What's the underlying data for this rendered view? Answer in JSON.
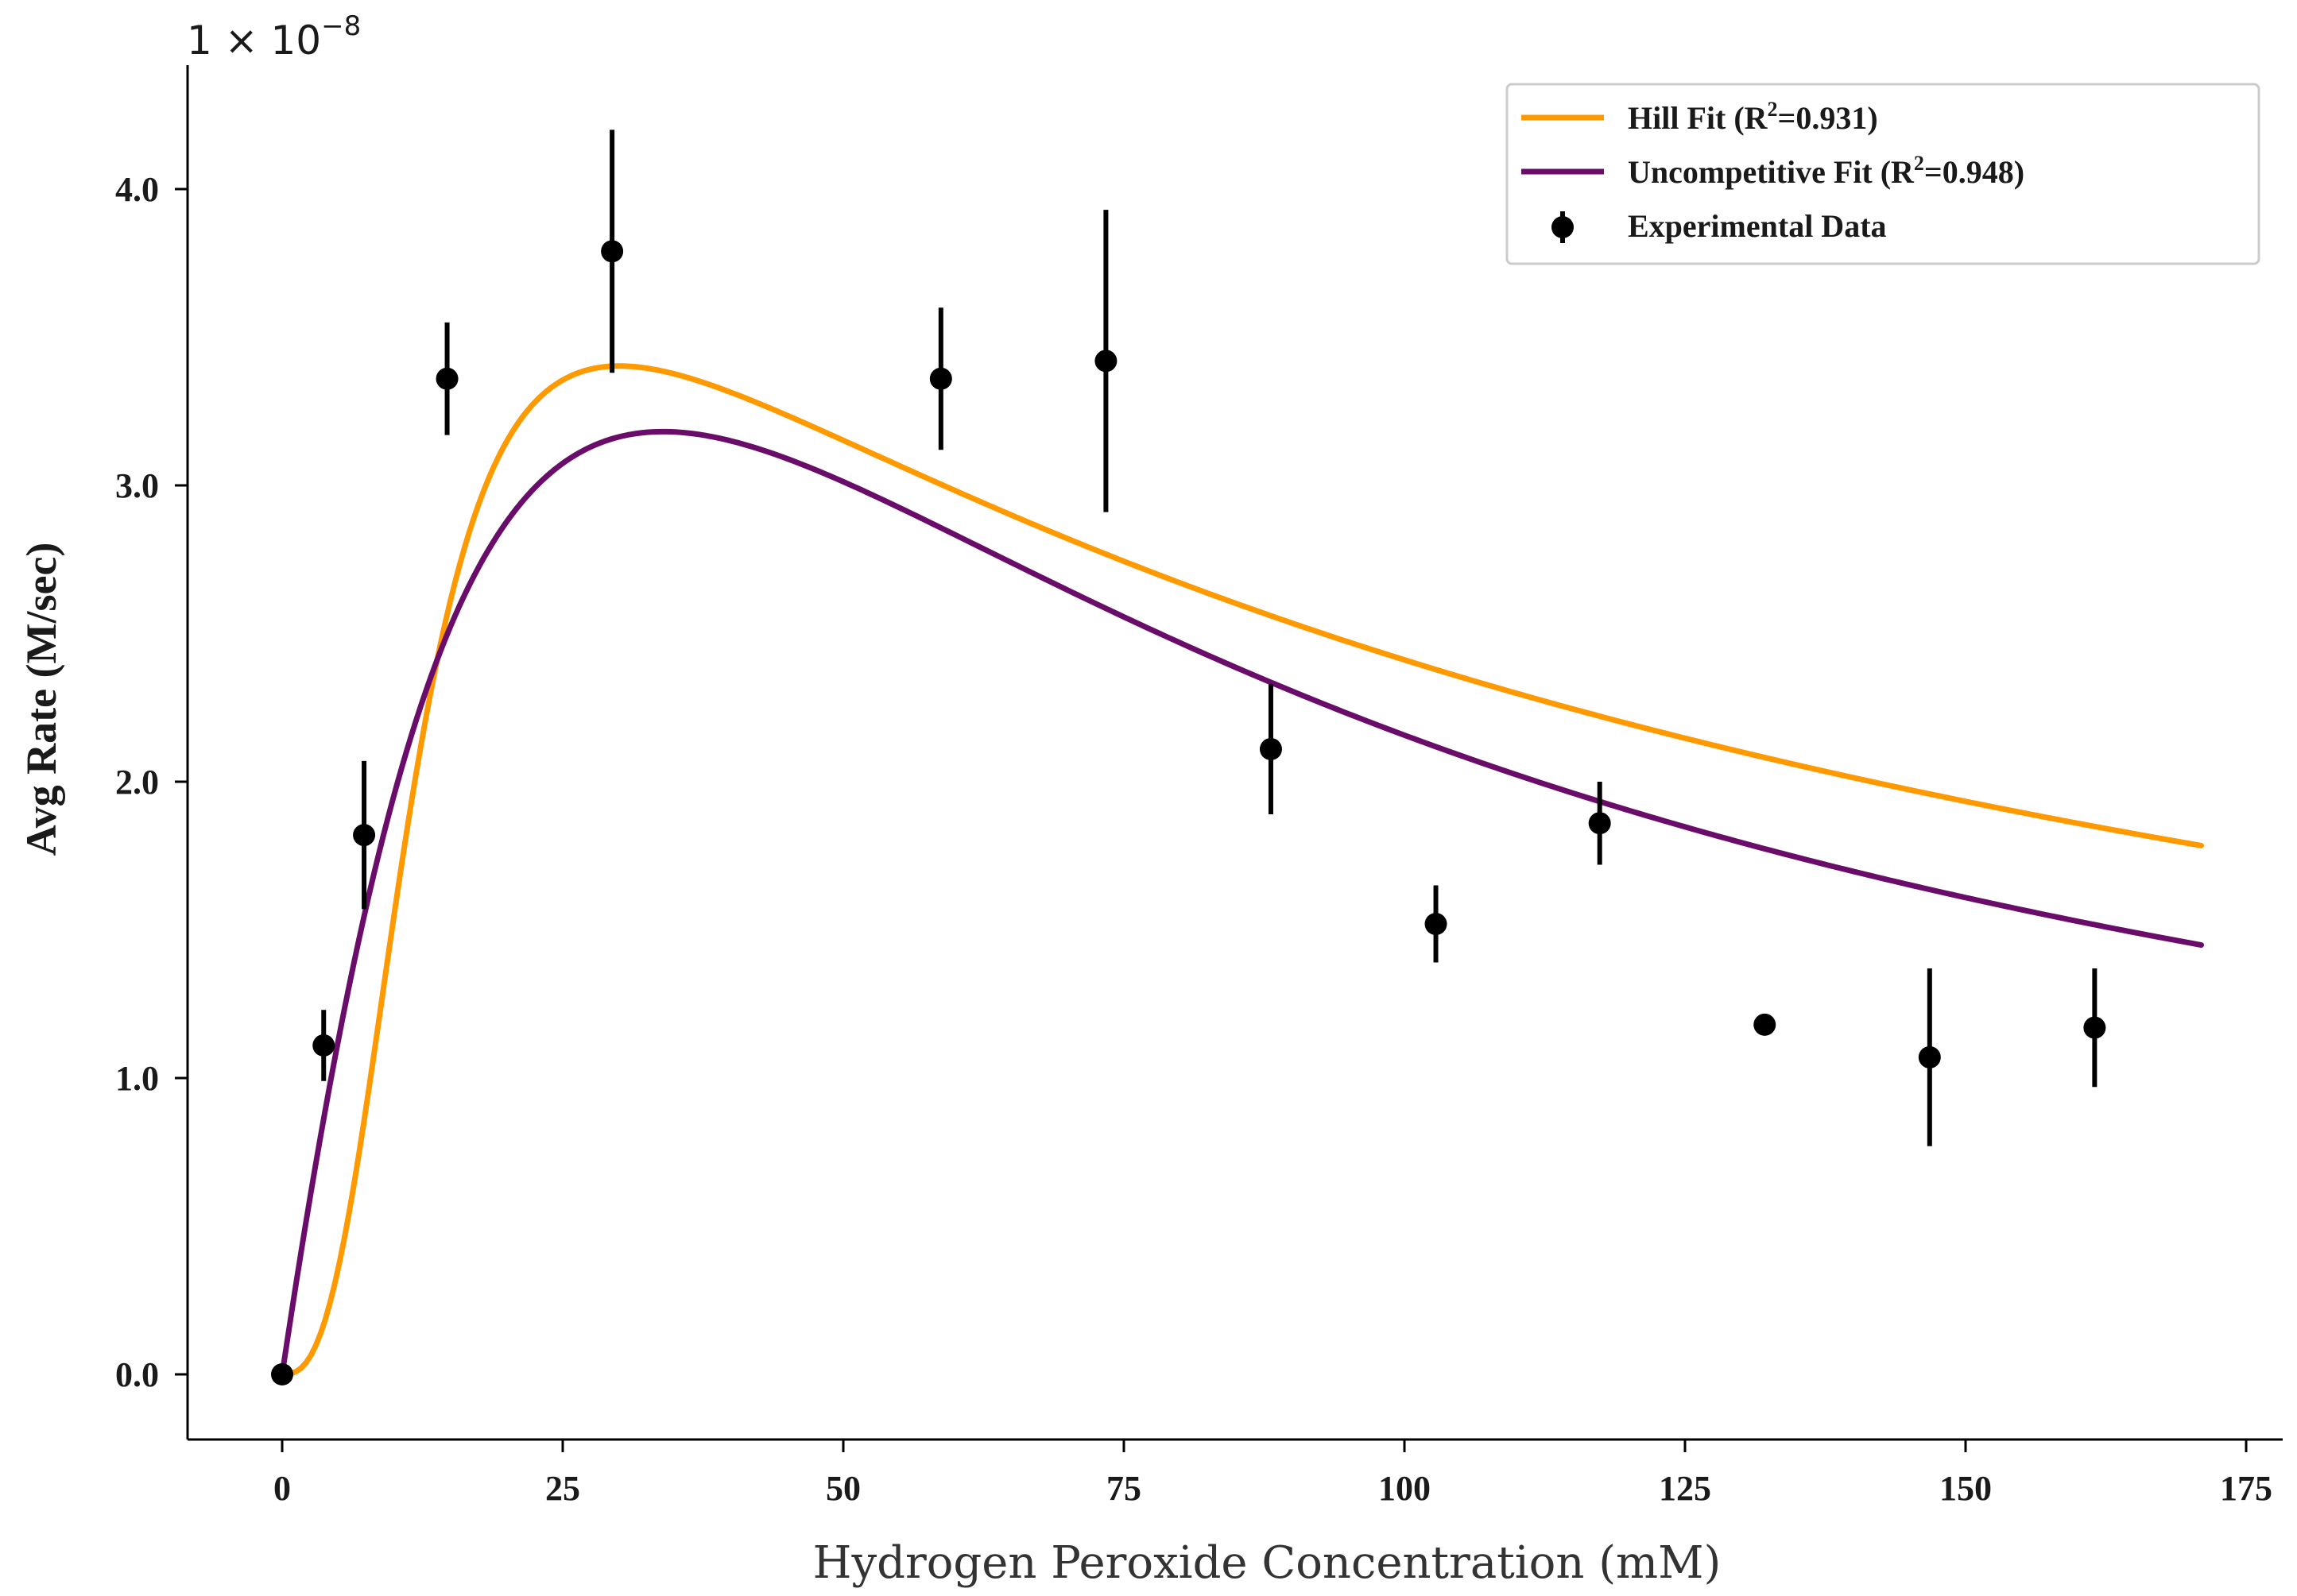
{
  "chart_data": {
    "type": "line",
    "title": "",
    "xlabel": "Hydrogen Peroxide Concentration (mM)",
    "ylabel": "Avg Rate (M/sec)",
    "y_scale_factor_label": "1 × 10",
    "y_scale_factor_exponent": "−8",
    "xlim": [
      -8.5,
      179
    ],
    "ylim": [
      -0.22,
      4.5
    ],
    "x_ticks": [
      0,
      25,
      50,
      75,
      100,
      125,
      150,
      175
    ],
    "x_tick_labels": [
      "0",
      "25",
      "50",
      "75",
      "100",
      "125",
      "150",
      "175"
    ],
    "y_ticks": [
      0,
      1,
      2,
      3,
      4
    ],
    "y_tick_labels": [
      "0.0",
      "1.0",
      "2.0",
      "3.0",
      "4.0"
    ],
    "grid": false,
    "legend_position": "top-right",
    "series": [
      {
        "name": "Hill Fit",
        "legend_label": "Hill Fit (R",
        "legend_sup": "2",
        "legend_suffix": "=0.931)",
        "color": "#ff9900",
        "kind": "line",
        "model": "hill",
        "params": {
          "vmax": 4.84,
          "K": 12.5,
          "n": 2.7,
          "Ki": 100
        },
        "x_range": [
          0,
          171
        ]
      },
      {
        "name": "Uncompetitive Fit",
        "legend_label": "Uncompetitive Fit (R",
        "legend_sup": "2",
        "legend_suffix": "=0.948)",
        "color": "#6a0d6a",
        "kind": "line",
        "model": "uncompetitive",
        "params": {
          "vmax": 12.18,
          "Km": 48,
          "Ki": 24
        },
        "x_range": [
          0,
          171
        ]
      },
      {
        "name": "Experimental Data",
        "legend_label": "Experimental Data",
        "color": "#000000",
        "kind": "errorbar",
        "points": [
          {
            "x": 0,
            "y": 0.0,
            "err": 0.0
          },
          {
            "x": 3.7,
            "y": 1.11,
            "err": 0.12
          },
          {
            "x": 7.3,
            "y": 1.82,
            "err": 0.25
          },
          {
            "x": 14.7,
            "y": 3.36,
            "err": 0.19
          },
          {
            "x": 29.4,
            "y": 3.79,
            "err": 0.41
          },
          {
            "x": 58.7,
            "y": 3.36,
            "err": 0.24
          },
          {
            "x": 73.4,
            "y": 3.42,
            "err": 0.51
          },
          {
            "x": 88.1,
            "y": 2.11,
            "err": 0.22
          },
          {
            "x": 102.8,
            "y": 1.52,
            "err": 0.13
          },
          {
            "x": 117.4,
            "y": 1.86,
            "err": 0.14
          },
          {
            "x": 132.1,
            "y": 1.18,
            "err": 0.0
          },
          {
            "x": 146.8,
            "y": 1.07,
            "err": 0.3
          },
          {
            "x": 161.5,
            "y": 1.17,
            "err": 0.2
          }
        ]
      }
    ]
  }
}
